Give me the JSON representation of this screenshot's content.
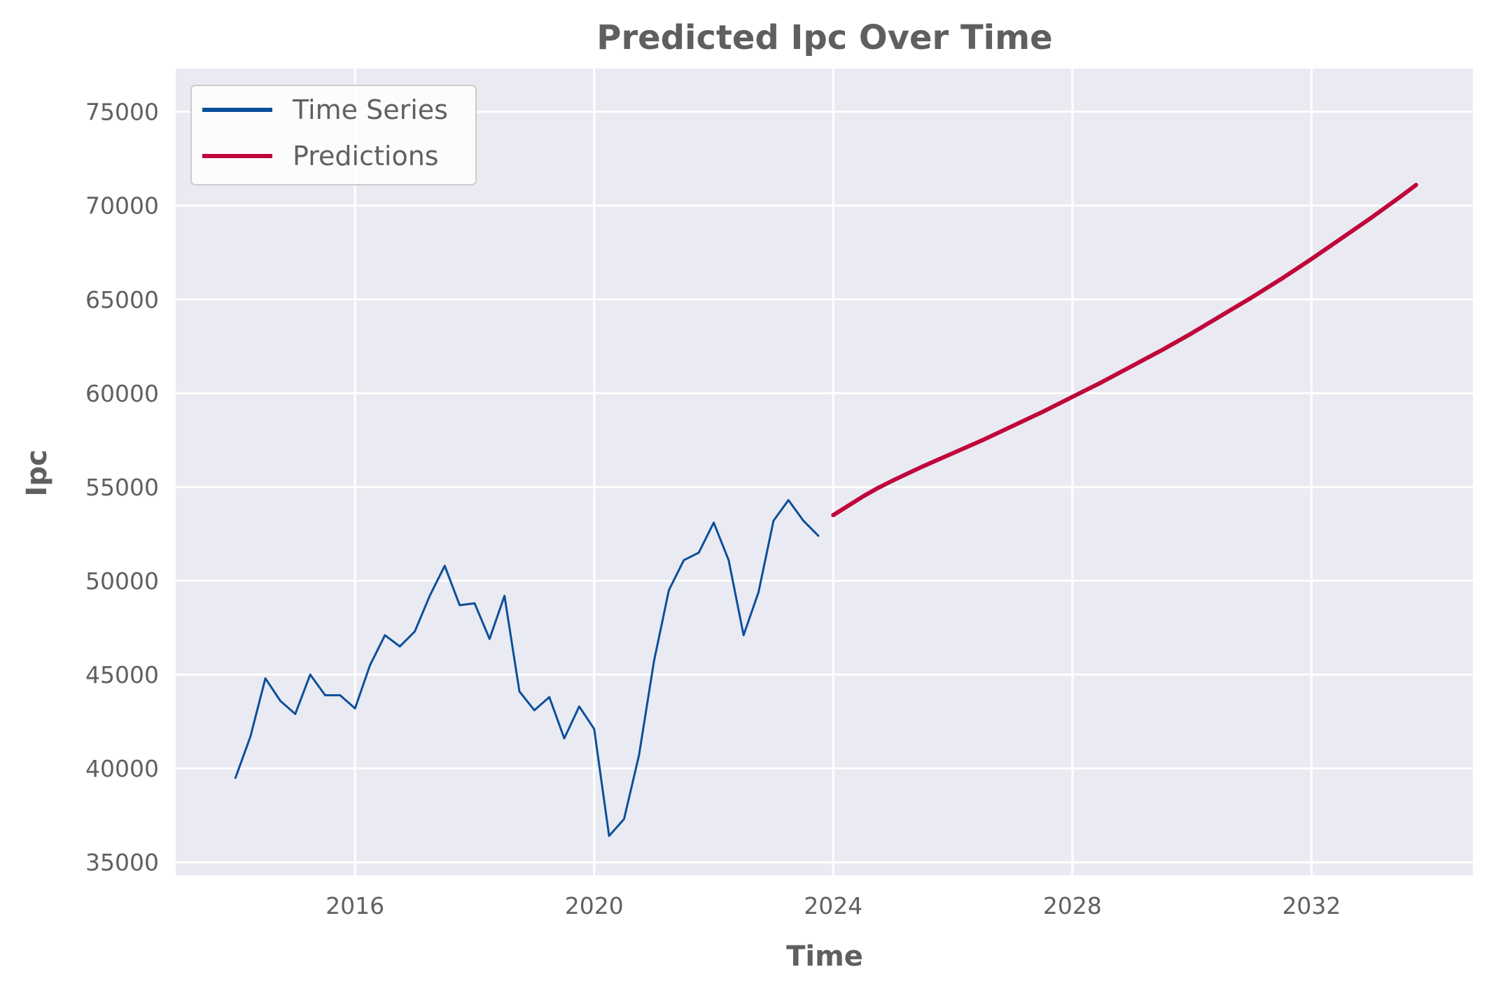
{
  "chart_data": {
    "type": "line",
    "title": "Predicted Ipc Over Time",
    "xlabel": "Time",
    "ylabel": "Ipc",
    "xlim": [
      2013.0,
      2034.7
    ],
    "ylim": [
      34300,
      77300
    ],
    "x_ticks": [
      2016,
      2020,
      2024,
      2028,
      2032
    ],
    "y_ticks": [
      35000,
      40000,
      45000,
      50000,
      55000,
      60000,
      65000,
      70000,
      75000
    ],
    "grid": true,
    "legend_position": "top-left",
    "series": [
      {
        "name": "Time Series",
        "color": "#0b4f9a",
        "line_width": 3,
        "points": [
          [
            2014.0,
            39500
          ],
          [
            2014.25,
            41700
          ],
          [
            2014.5,
            44800
          ],
          [
            2014.75,
            43600
          ],
          [
            2015.0,
            42900
          ],
          [
            2015.25,
            45000
          ],
          [
            2015.5,
            43900
          ],
          [
            2015.75,
            43900
          ],
          [
            2016.0,
            43200
          ],
          [
            2016.25,
            45500
          ],
          [
            2016.5,
            47100
          ],
          [
            2016.75,
            46500
          ],
          [
            2017.0,
            47300
          ],
          [
            2017.25,
            49200
          ],
          [
            2017.5,
            50800
          ],
          [
            2017.75,
            48700
          ],
          [
            2018.0,
            48800
          ],
          [
            2018.25,
            46900
          ],
          [
            2018.5,
            49200
          ],
          [
            2018.75,
            44100
          ],
          [
            2019.0,
            43100
          ],
          [
            2019.25,
            43800
          ],
          [
            2019.5,
            41600
          ],
          [
            2019.75,
            43300
          ],
          [
            2020.0,
            42100
          ],
          [
            2020.25,
            36400
          ],
          [
            2020.5,
            37300
          ],
          [
            2020.75,
            40700
          ],
          [
            2021.0,
            45700
          ],
          [
            2021.25,
            49500
          ],
          [
            2021.5,
            51100
          ],
          [
            2021.75,
            51500
          ],
          [
            2022.0,
            53100
          ],
          [
            2022.25,
            51100
          ],
          [
            2022.5,
            47100
          ],
          [
            2022.75,
            49400
          ],
          [
            2023.0,
            53200
          ],
          [
            2023.25,
            54300
          ],
          [
            2023.5,
            53200
          ],
          [
            2023.75,
            52400
          ]
        ]
      },
      {
        "name": "Predictions",
        "color": "#c0063a",
        "line_width": 6,
        "points": [
          [
            2024.0,
            53500
          ],
          [
            2024.25,
            54000
          ],
          [
            2024.5,
            54500
          ],
          [
            2024.75,
            54950
          ],
          [
            2025.0,
            55350
          ],
          [
            2025.5,
            56100
          ],
          [
            2026.0,
            56800
          ],
          [
            2026.5,
            57500
          ],
          [
            2027.0,
            58250
          ],
          [
            2027.5,
            59000
          ],
          [
            2028.0,
            59800
          ],
          [
            2028.5,
            60600
          ],
          [
            2029.0,
            61450
          ],
          [
            2029.5,
            62300
          ],
          [
            2030.0,
            63200
          ],
          [
            2030.5,
            64150
          ],
          [
            2031.0,
            65100
          ],
          [
            2031.5,
            66100
          ],
          [
            2032.0,
            67150
          ],
          [
            2032.5,
            68250
          ],
          [
            2033.0,
            69350
          ],
          [
            2033.5,
            70500
          ],
          [
            2033.75,
            71100
          ]
        ]
      }
    ]
  }
}
